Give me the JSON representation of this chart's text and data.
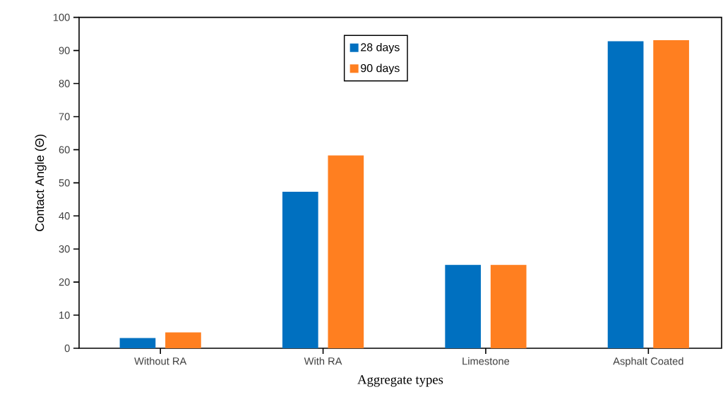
{
  "chart_data": {
    "type": "bar",
    "xlabel": "Aggregate types",
    "ylabel": "Contact Angle (Θ)",
    "categories": [
      "Without RA",
      "With RA",
      "Limestone",
      "Asphalt Coated"
    ],
    "series": [
      {
        "name": "28 days",
        "color": "#0070c0",
        "values": [
          3.1,
          47.3,
          25.2,
          92.8
        ]
      },
      {
        "name": "90 days",
        "color": "#ff7f20",
        "values": [
          4.8,
          58.3,
          25.2,
          93.1
        ]
      }
    ],
    "ylim": [
      0,
      100
    ],
    "yticks": [
      0,
      10,
      20,
      30,
      40,
      50,
      60,
      70,
      80,
      90,
      100
    ],
    "legend": "top"
  }
}
